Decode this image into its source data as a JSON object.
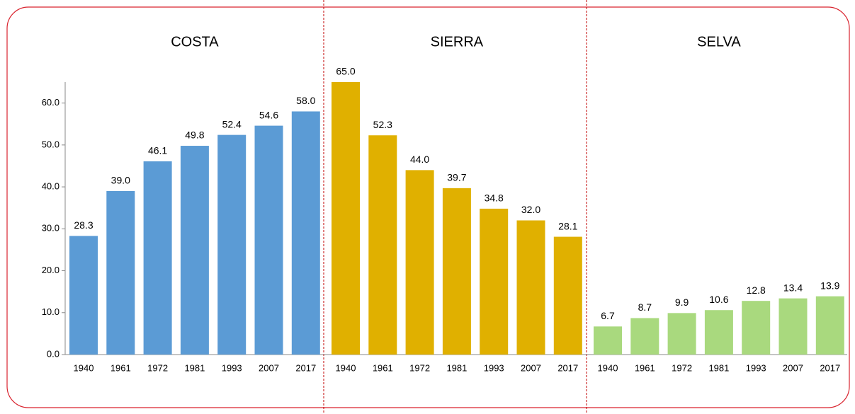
{
  "chart_data": {
    "type": "bar",
    "ylim": [
      0,
      65
    ],
    "yticks": [
      {
        "value": 0,
        "label": "0.0"
      },
      {
        "value": 10,
        "label": "10.0"
      },
      {
        "value": 20,
        "label": "20.0"
      },
      {
        "value": 30,
        "label": "30.0"
      },
      {
        "value": 40,
        "label": "40.0"
      },
      {
        "value": 50,
        "label": "50.0"
      },
      {
        "value": 60,
        "label": "60.0"
      }
    ],
    "series": [
      {
        "name": "COSTA",
        "color": "#5b9bd5",
        "categories": [
          "1940",
          "1961",
          "1972",
          "1981",
          "1993",
          "2007",
          "2017"
        ],
        "values": [
          28.3,
          39.0,
          46.1,
          49.8,
          52.4,
          54.6,
          58.0
        ],
        "value_labels": [
          "28.3",
          "39.0",
          "46.1",
          "49.8",
          "52.4",
          "54.6",
          "58.0"
        ]
      },
      {
        "name": "SIERRA",
        "color": "#e0b000",
        "categories": [
          "1940",
          "1961",
          "1972",
          "1981",
          "1993",
          "2007",
          "2017"
        ],
        "values": [
          65.0,
          52.3,
          44.0,
          39.7,
          34.8,
          32.0,
          28.1
        ],
        "value_labels": [
          "65.0",
          "52.3",
          "44.0",
          "39.7",
          "34.8",
          "32.0",
          "28.1"
        ]
      },
      {
        "name": "SELVA",
        "color": "#a9d97e",
        "categories": [
          "1940",
          "1961",
          "1972",
          "1981",
          "1993",
          "2007",
          "2017"
        ],
        "values": [
          6.7,
          8.7,
          9.9,
          10.6,
          12.8,
          13.4,
          13.9
        ],
        "value_labels": [
          "6.7",
          "8.7",
          "9.9",
          "10.6",
          "12.8",
          "13.4",
          "13.9"
        ]
      }
    ]
  }
}
